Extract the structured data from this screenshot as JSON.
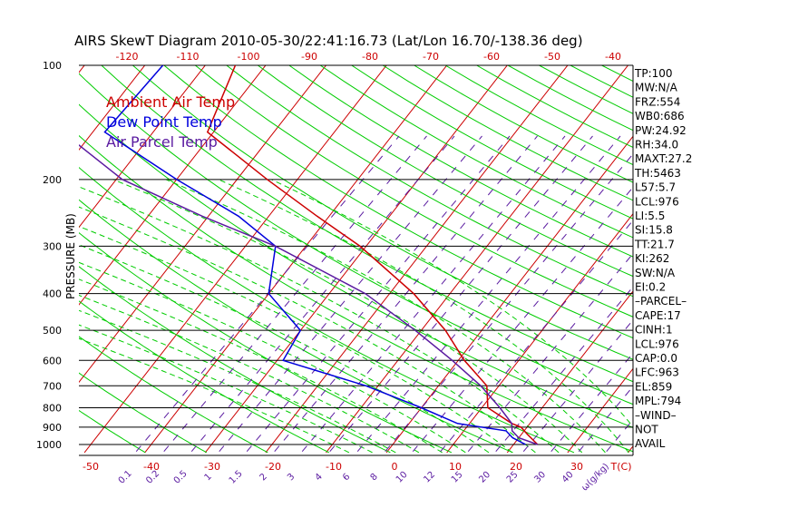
{
  "title": "AIRS SkewT Diagram 2010-05-30/22:41:16.73 (Lat/Lon 16.70/-138.36 deg)",
  "ylabel": "PRESSURE (MB)",
  "colors": {
    "ambient": "#cc0000",
    "dewpoint": "#0000dd",
    "parcel": "#5a1aa0",
    "isotherm": "#cc0000",
    "dry_adiabat": "#00cc00",
    "moist_adiabat": "#00cc00",
    "mixing_ratio": "#5a1aa0",
    "isobar": "#000000"
  },
  "legend": [
    {
      "label": "Ambient Air Temp",
      "color": "#cc0000"
    },
    {
      "label": "Dew Point Temp",
      "color": "#0000dd"
    },
    {
      "label": "Air Parcel Temp",
      "color": "#5a1aa0"
    }
  ],
  "top_ticks": [
    "-120",
    "-110",
    "-100",
    "-90",
    "-80",
    "-70",
    "-60",
    "-50",
    "-40"
  ],
  "bottom_ticks": [
    "-50",
    "-40",
    "-30",
    "-20",
    "-10",
    "0",
    "10",
    "20",
    "30",
    "T(C)"
  ],
  "mixing_ticks": [
    "0.1",
    "0.2",
    "0.5",
    "1",
    "1.5",
    "2",
    "3",
    "4",
    "6",
    "8",
    "10",
    "12",
    "15",
    "20",
    "25",
    "30",
    "40",
    "ω(g/kg)"
  ],
  "indices": [
    "TP:100",
    "MW:N/A",
    "FRZ:554",
    "WB0:686",
    "PW:24.92",
    "RH:34.0",
    "MAXT:27.2",
    "TH:5463",
    "L57:5.7",
    "LCL:976",
    "LI:5.5",
    "SI:15.8",
    "TT:21.7",
    "KI:262",
    "SW:N/A",
    "EI:0.2",
    "–PARCEL–",
    "CAPE:17",
    "CINH:1",
    "LCL:976",
    "CAP:0.0",
    "LFC:963",
    "EL:859",
    "MPL:794",
    "–WIND–",
    "NOT",
    "AVAIL"
  ],
  "chart_data": {
    "type": "line",
    "subtype": "skew-T log-P",
    "pressure_levels": [
      100,
      200,
      300,
      400,
      500,
      600,
      700,
      800,
      900,
      1000
    ],
    "ylim": [
      1050,
      100
    ],
    "y_scale": "log",
    "xlabel": "T(C)",
    "series": [
      {
        "name": "Ambient Air Temp",
        "points": [
          [
            100,
            -75
          ],
          [
            150,
            -71
          ],
          [
            200,
            -55
          ],
          [
            250,
            -42
          ],
          [
            300,
            -31
          ],
          [
            400,
            -16
          ],
          [
            500,
            -6
          ],
          [
            600,
            1
          ],
          [
            700,
            8
          ],
          [
            800,
            11
          ],
          [
            880,
            17
          ],
          [
            900,
            19
          ],
          [
            940,
            21
          ],
          [
            1000,
            24
          ]
        ]
      },
      {
        "name": "Dew Point Temp",
        "points": [
          [
            100,
            -87
          ],
          [
            150,
            -88
          ],
          [
            200,
            -70
          ],
          [
            250,
            -55
          ],
          [
            300,
            -45
          ],
          [
            400,
            -40
          ],
          [
            500,
            -30
          ],
          [
            600,
            -29
          ],
          [
            700,
            -12
          ],
          [
            800,
            0
          ],
          [
            880,
            8
          ],
          [
            920,
            17
          ],
          [
            960,
            19
          ],
          [
            1000,
            22
          ]
        ]
      },
      {
        "name": "Air Parcel Temp",
        "points": [
          [
            100,
            -102
          ],
          [
            150,
            -95
          ],
          [
            200,
            -79
          ],
          [
            250,
            -61
          ],
          [
            300,
            -45
          ],
          [
            400,
            -24
          ],
          [
            500,
            -11
          ],
          [
            600,
            -1
          ],
          [
            700,
            7
          ],
          [
            800,
            13
          ],
          [
            880,
            17
          ],
          [
            920,
            18
          ],
          [
            960,
            20
          ],
          [
            1000,
            24
          ]
        ]
      }
    ]
  }
}
